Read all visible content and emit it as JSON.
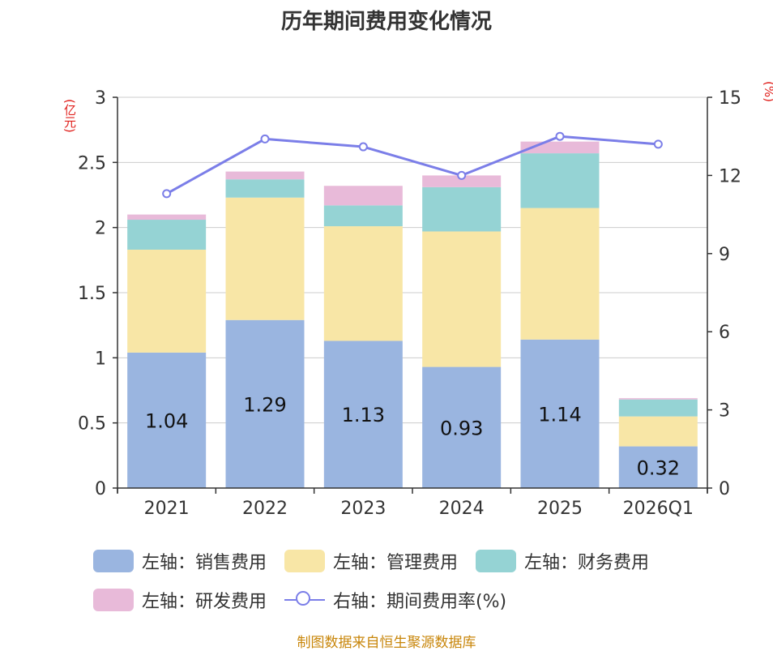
{
  "title": "历年期间费用变化情况",
  "left_unit": "(亿元)",
  "right_unit": "(%)",
  "source": "制图数据来自恒生聚源数据库",
  "colors": {
    "sales": "#9ab5e0",
    "admin": "#f8e6a6",
    "finance": "#95d3d4",
    "rd": "#e8bad9",
    "rate": "#7b7ee8",
    "grid": "#cccccc",
    "axis": "#333333"
  },
  "chart_data": {
    "type": "bar",
    "stacked": true,
    "title": "历年期间费用变化情况",
    "categories": [
      "2021",
      "2022",
      "2023",
      "2024",
      "2025",
      "2026Q1"
    ],
    "y_left": {
      "label": "(亿元)",
      "min": 0,
      "max": 3,
      "ticks": [
        "0",
        "0.5",
        "1",
        "1.5",
        "2",
        "2.5",
        "3"
      ]
    },
    "y_right": {
      "label": "(%)",
      "min": 0,
      "max": 15,
      "ticks": [
        "0",
        "3",
        "6",
        "9",
        "12",
        "15"
      ]
    },
    "series": [
      {
        "name": "左轴：销售费用",
        "key": "sales",
        "axis": "left",
        "values": [
          1.04,
          1.29,
          1.13,
          0.93,
          1.14,
          0.32
        ],
        "labels": [
          "1.04",
          "1.29",
          "1.13",
          "0.93",
          "1.14",
          "0.32"
        ]
      },
      {
        "name": "左轴：管理费用",
        "key": "admin",
        "axis": "left",
        "values": [
          0.79,
          0.94,
          0.88,
          1.04,
          1.01,
          0.23
        ]
      },
      {
        "name": "左轴：财务费用",
        "key": "finance",
        "axis": "left",
        "values": [
          0.23,
          0.14,
          0.16,
          0.34,
          0.42,
          0.13
        ]
      },
      {
        "name": "左轴：研发费用",
        "key": "rd",
        "axis": "left",
        "values": [
          0.04,
          0.06,
          0.15,
          0.09,
          0.09,
          0.01
        ]
      },
      {
        "name": "右轴：期间费用率(%)",
        "key": "rate",
        "axis": "right",
        "type": "line",
        "values": [
          11.3,
          13.4,
          13.1,
          12.0,
          13.5,
          13.2
        ]
      }
    ],
    "legend": "bottom"
  }
}
